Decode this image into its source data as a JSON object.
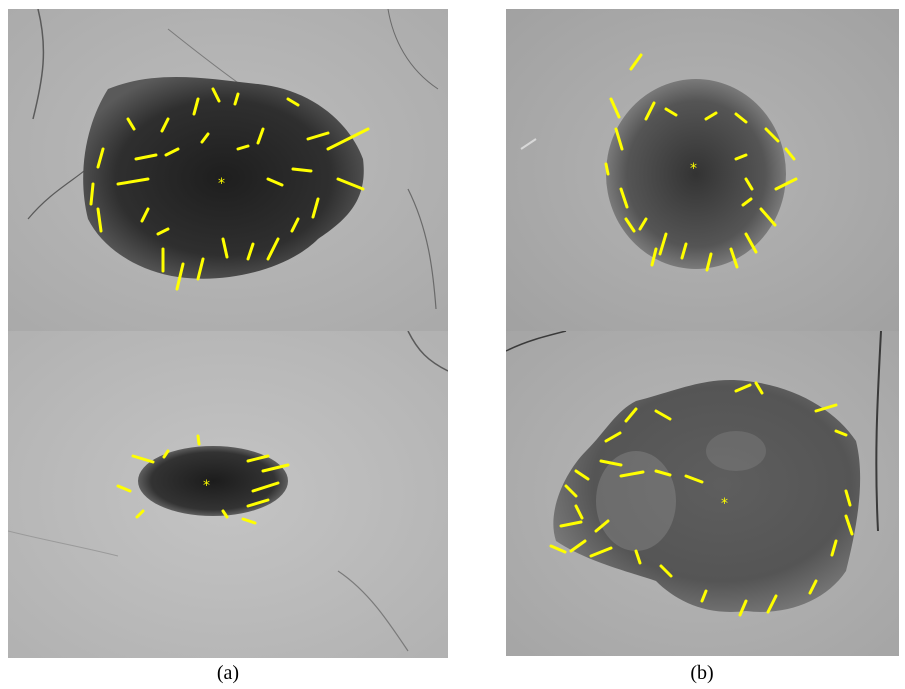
{
  "figure": {
    "captions": [
      "(a)",
      "(b)"
    ]
  },
  "palette": {
    "skin": "#b4b4b4",
    "lesion": "#2a2a2a",
    "streak": "#ffff00",
    "hair": "#4a4a4a"
  },
  "panels": [
    {
      "id": "a-top",
      "column": "a",
      "row": "top"
    },
    {
      "id": "a-bottom",
      "column": "a",
      "row": "bottom"
    },
    {
      "id": "b-top",
      "column": "b",
      "row": "top"
    },
    {
      "id": "b-bottom",
      "column": "b",
      "row": "bottom"
    }
  ]
}
